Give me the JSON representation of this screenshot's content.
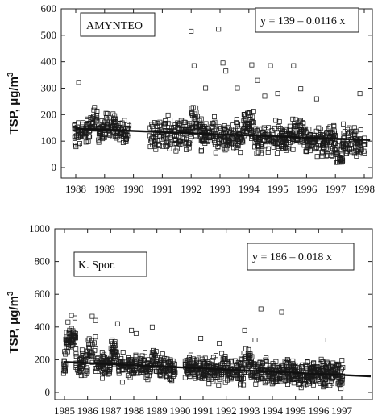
{
  "chart_data": [
    {
      "type": "scatter",
      "station_label": "AMYNTEO",
      "equation": "y = 139 – 0.0116 x",
      "ylabel": "TSP, μg/m",
      "ylabel_sup": "3",
      "xlabel": "",
      "ylim": [
        0,
        600
      ],
      "yticks": [
        0,
        100,
        200,
        300,
        400,
        500,
        600
      ],
      "xlim": [
        1987.5,
        1998.2
      ],
      "xticks": [
        1988,
        1989,
        1990,
        1991,
        1992,
        1993,
        1994,
        1995,
        1996,
        1997,
        1998
      ],
      "gaps": [
        [
          1989.85,
          1990.55
        ]
      ],
      "trend": {
        "x0": 1988.0,
        "y0": 147,
        "x1": 1998.2,
        "y1": 104
      },
      "sampling": {
        "seed": 11,
        "per_year": 115,
        "scale": 52,
        "base": 139,
        "slope": -4.2,
        "seasonal": [
          [
            1988.5,
            1988.75,
            40
          ],
          [
            1989.0,
            1989.4,
            30
          ],
          [
            1992.0,
            1992.3,
            40
          ],
          [
            1993.8,
            1994.2,
            45
          ],
          [
            1995.4,
            1995.9,
            25
          ]
        ],
        "low": [
          [
            1997.0,
            1997.25,
            -60
          ]
        ]
      },
      "outliers": [
        [
          1988.1,
          322
        ],
        [
          1992.0,
          515
        ],
        [
          1992.1,
          385
        ],
        [
          1992.95,
          523
        ],
        [
          1993.1,
          395
        ],
        [
          1993.2,
          365
        ],
        [
          1994.1,
          388
        ],
        [
          1994.3,
          330
        ],
        [
          1994.75,
          385
        ],
        [
          1995.55,
          385
        ],
        [
          1995.8,
          298
        ],
        [
          1996.35,
          260
        ],
        [
          1997.85,
          280
        ],
        [
          1993.6,
          300
        ],
        [
          1992.5,
          300
        ],
        [
          1994.55,
          270
        ],
        [
          1995.0,
          280
        ]
      ]
    },
    {
      "type": "scatter",
      "station_label": "K. Spor.",
      "equation": "y = 186 – 0.018 x",
      "ylabel": "TSP, μg/m",
      "ylabel_sup": "3",
      "xlabel": "",
      "ylim": [
        0,
        1000
      ],
      "yticks": [
        0,
        200,
        400,
        600,
        800,
        1000
      ],
      "xlim": [
        1984.5,
        1998.5
      ],
      "xticks": [
        1985,
        1986,
        1987,
        1988,
        1989,
        1990,
        1991,
        1992,
        1993,
        1994,
        1995,
        1996,
        1997
      ],
      "gaps": [
        [
          1989.8,
          1990.2
        ]
      ],
      "trend": {
        "x0": 1985.0,
        "y0": 186,
        "x1": 1998.5,
        "y1": 98
      },
      "sampling": {
        "seed": 23,
        "per_year": 105,
        "scale": 72,
        "base": 180,
        "slope": -6.0,
        "seasonal": [
          [
            1985.05,
            1985.5,
            140
          ],
          [
            1986.0,
            1986.35,
            90
          ],
          [
            1987.0,
            1987.3,
            70
          ],
          [
            1988.75,
            1989.0,
            40
          ],
          [
            1992.75,
            1993.1,
            50
          ]
        ],
        "low": []
      },
      "outliers": [
        [
          1985.3,
          470
        ],
        [
          1985.45,
          455
        ],
        [
          1985.15,
          430
        ],
        [
          1986.2,
          465
        ],
        [
          1986.35,
          440
        ],
        [
          1987.3,
          420
        ],
        [
          1988.8,
          400
        ],
        [
          1987.9,
          380
        ],
        [
          1988.1,
          360
        ],
        [
          1992.8,
          380
        ],
        [
          1993.5,
          510
        ],
        [
          1994.4,
          490
        ],
        [
          1993.25,
          320
        ],
        [
          1990.9,
          330
        ],
        [
          1991.7,
          300
        ],
        [
          1996.4,
          320
        ]
      ]
    }
  ]
}
